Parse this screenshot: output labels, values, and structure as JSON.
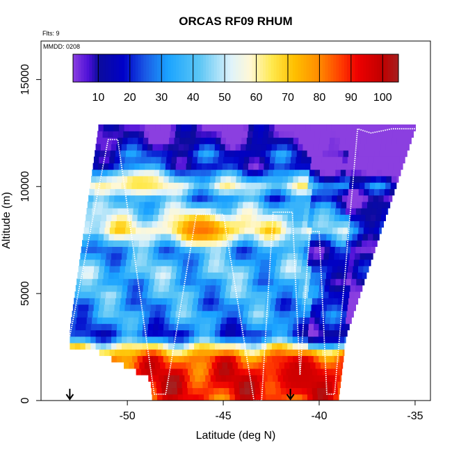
{
  "chart_data": {
    "type": "heatmap",
    "title": "ORCAS RF09 RHUM",
    "annotations": {
      "flights": "Flts: 9",
      "mmdd": "MMDD: 0208"
    },
    "xlabel": "Latitude (deg N)",
    "ylabel": "Altitude (m)",
    "xlim": [
      -54.5,
      -34.2
    ],
    "ylim": [
      0,
      16800
    ],
    "xticks": [
      -50,
      -45,
      -40,
      -35
    ],
    "yticks": [
      0,
      5000,
      10000,
      15000
    ],
    "colorbar": {
      "min": 2,
      "max": 105,
      "ticks": [
        10,
        20,
        30,
        40,
        50,
        60,
        70,
        80,
        90,
        100
      ],
      "stops": [
        {
          "v": 2,
          "color": "#8b3fe0"
        },
        {
          "v": 7,
          "color": "#4b0fd8"
        },
        {
          "v": 10,
          "color": "#0c0c9c"
        },
        {
          "v": 18,
          "color": "#0000c8"
        },
        {
          "v": 25,
          "color": "#1a5be6"
        },
        {
          "v": 32,
          "color": "#1aa3ff"
        },
        {
          "v": 42,
          "color": "#5cc6f5"
        },
        {
          "v": 52,
          "color": "#dff3fb"
        },
        {
          "v": 58,
          "color": "#fff8d6"
        },
        {
          "v": 65,
          "color": "#ffe94d"
        },
        {
          "v": 72,
          "color": "#ffc000"
        },
        {
          "v": 80,
          "color": "#ff8a00"
        },
        {
          "v": 87,
          "color": "#ff3a00"
        },
        {
          "v": 92,
          "color": "#ee0000"
        },
        {
          "v": 100,
          "color": "#c00000"
        },
        {
          "v": 105,
          "color": "#a52020"
        }
      ]
    },
    "rhum_profile": {
      "altitudes": [
        0,
        500,
        1000,
        1500,
        2000,
        2500,
        3000,
        3500,
        4000,
        4500,
        5000,
        5500,
        6000,
        6500,
        7000,
        7500,
        8000,
        8500,
        9000,
        9500,
        10000,
        10500,
        11000,
        11500,
        12000,
        12500
      ],
      "values": [
        88,
        92,
        93,
        90,
        84,
        62,
        22,
        28,
        35,
        30,
        38,
        34,
        42,
        36,
        30,
        44,
        60,
        50,
        42,
        30,
        52,
        34,
        14,
        22,
        10,
        4
      ]
    },
    "features": [
      {
        "lat": -46.0,
        "alt": 8000,
        "value": 82
      },
      {
        "lat": -49.5,
        "alt": 10200,
        "value": 66
      },
      {
        "lat": -41.0,
        "alt": 1200,
        "value": 97
      }
    ],
    "flight_track": {
      "lat": [
        -53.0,
        -51.0,
        -50.5,
        -48.6,
        -48.0,
        -46.4,
        -45.0,
        -43.4,
        -43.0,
        -42.4,
        -41.4,
        -41.0,
        -40.5,
        -40.0,
        -39.6,
        -39.2,
        -38.0,
        -37.3,
        -36.2,
        -35.0
      ],
      "alt": [
        3000,
        12200,
        12200,
        300,
        300,
        8700,
        8700,
        0,
        0,
        8800,
        8800,
        1200,
        7900,
        7900,
        300,
        300,
        12700,
        12500,
        12700,
        12700
      ]
    },
    "markers": [
      {
        "lat": -53.0,
        "alt": 500
      },
      {
        "lat": -41.5,
        "alt": 500
      }
    ]
  }
}
